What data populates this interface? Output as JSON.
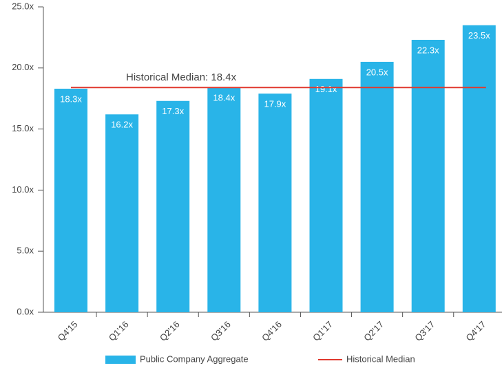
{
  "chart_data": {
    "type": "bar",
    "categories": [
      "Q4'15",
      "Q1'16",
      "Q2'16",
      "Q3'16",
      "Q4'16",
      "Q1'17",
      "Q2'17",
      "Q3'17",
      "Q4'17"
    ],
    "series": [
      {
        "name": "Public Company Aggregate",
        "color": "#29b4e8",
        "values": [
          18.3,
          16.2,
          17.3,
          18.4,
          17.9,
          19.1,
          20.5,
          22.3,
          23.5
        ],
        "value_labels": [
          "18.3x",
          "16.2x",
          "17.3x",
          "18.4x",
          "17.9x",
          "19.1x",
          "20.5x",
          "22.3x",
          "23.5x"
        ]
      }
    ],
    "median": {
      "name": "Historical Median",
      "value": 18.4,
      "annotation": "Historical Median: 18.4x",
      "color": "#e0392e"
    },
    "ylim": [
      0,
      25
    ],
    "yticks": [
      {
        "value": 0,
        "label": "0.0x"
      },
      {
        "value": 5,
        "label": "5.0x"
      },
      {
        "value": 10,
        "label": "10.0x"
      },
      {
        "value": 15,
        "label": "15.0x"
      },
      {
        "value": 20,
        "label": "20.0x"
      },
      {
        "value": 25,
        "label": "25.0x"
      }
    ],
    "grid": false,
    "legend": "bottom"
  }
}
